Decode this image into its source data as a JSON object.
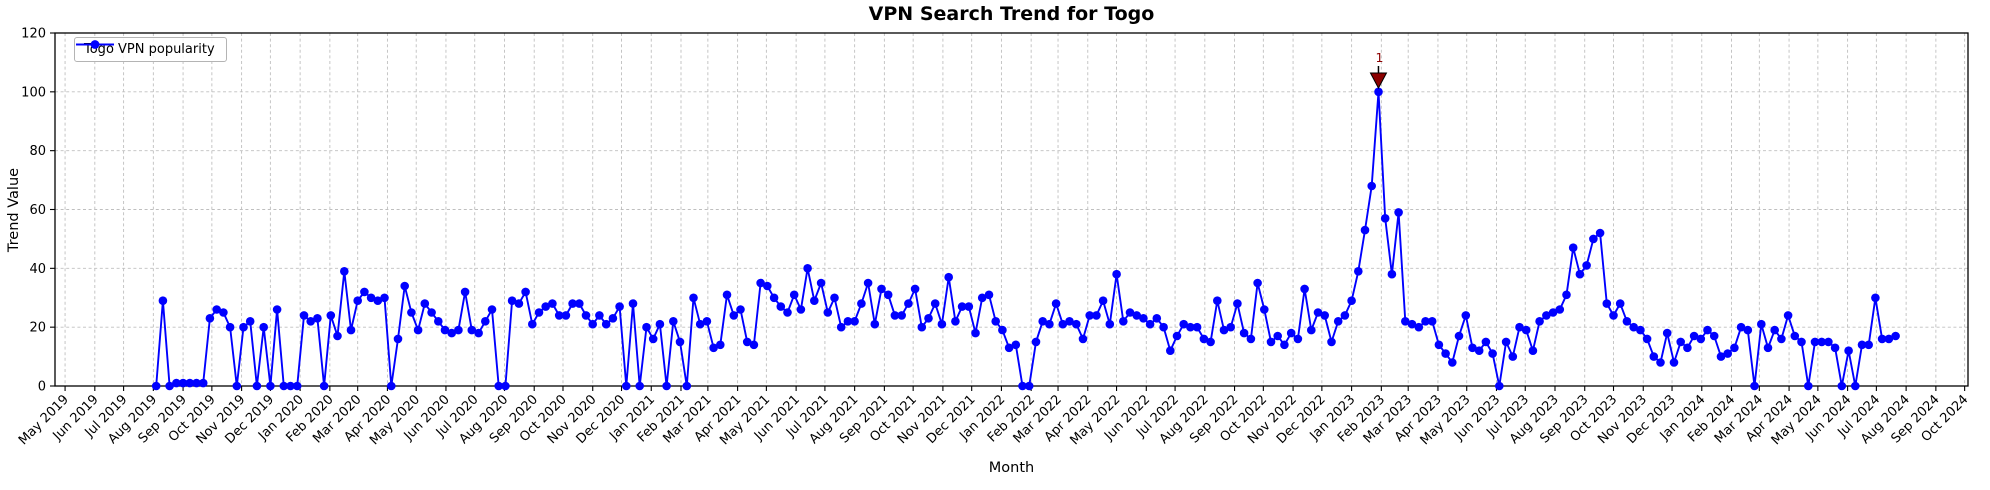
{
  "title": "VPN Search Trend for Togo",
  "x_axis_label": "Month",
  "y_axis_label": "Trend Value",
  "legend": {
    "label": "Togo VPN popularity"
  },
  "annotation": {
    "label": "1",
    "series_index": 182,
    "value": 100,
    "color": "#8b0000"
  },
  "colors": {
    "line": "#0000ff",
    "marker": "#0000ff",
    "grid": "#bfbfbf",
    "axis": "#000000",
    "annotation": "#8b0000",
    "background": "#ffffff"
  },
  "chart_data": {
    "type": "line",
    "title": "VPN Search Trend for Togo",
    "xlabel": "Month",
    "ylabel": "Trend Value",
    "ylim": [
      0,
      120
    ],
    "y_ticks": [
      0,
      20,
      40,
      60,
      80,
      100,
      120
    ],
    "grid": true,
    "legend_position": "upper left",
    "x_tick_labels": [
      "May 2019",
      "Jun 2019",
      "Jul 2019",
      "Aug 2019",
      "Sep 2019",
      "Oct 2019",
      "Nov 2019",
      "Dec 2019",
      "Jan 2020",
      "Feb 2020",
      "Mar 2020",
      "Apr 2020",
      "May 2020",
      "Jun 2020",
      "Jul 2020",
      "Aug 2020",
      "Sep 2020",
      "Oct 2020",
      "Nov 2020",
      "Dec 2020",
      "Jan 2021",
      "Feb 2021",
      "Mar 2021",
      "Apr 2021",
      "May 2021",
      "Jun 2021",
      "Jul 2021",
      "Aug 2021",
      "Sep 2021",
      "Oct 2021",
      "Nov 2021",
      "Dec 2021",
      "Jan 2022",
      "Feb 2022",
      "Mar 2022",
      "Apr 2022",
      "May 2022",
      "Jun 2022",
      "Jul 2022",
      "Aug 2022",
      "Sep 2022",
      "Oct 2022",
      "Nov 2022",
      "Dec 2022",
      "Jan 2023",
      "Feb 2023",
      "Mar 2023",
      "Apr 2023",
      "May 2023",
      "Jun 2023",
      "Jul 2023",
      "Aug 2023",
      "Sep 2023",
      "Oct 2023",
      "Nov 2023",
      "Dec 2023",
      "Jan 2024",
      "Feb 2024",
      "Mar 2024",
      "Apr 2024",
      "May 2024",
      "Jun 2024",
      "Jul 2024",
      "Aug 2024",
      "Sep 2024",
      "Oct 2024"
    ],
    "series": [
      {
        "name": "Togo VPN popularity",
        "start_date": "2019-08-04",
        "interval_days": 7,
        "values": [
          0,
          29,
          0,
          1,
          1,
          1,
          1,
          1,
          23,
          26,
          25,
          20,
          0,
          20,
          22,
          0,
          20,
          0,
          26,
          0,
          0,
          0,
          24,
          22,
          23,
          0,
          24,
          17,
          39,
          19,
          29,
          32,
          30,
          29,
          30,
          0,
          16,
          34,
          25,
          19,
          28,
          25,
          22,
          19,
          18,
          19,
          32,
          19,
          18,
          22,
          26,
          0,
          0,
          29,
          28,
          32,
          21,
          25,
          27,
          28,
          24,
          24,
          28,
          28,
          24,
          21,
          24,
          21,
          23,
          27,
          0,
          28,
          0,
          20,
          16,
          21,
          0,
          22,
          15,
          0,
          30,
          21,
          22,
          13,
          14,
          31,
          24,
          26,
          15,
          14,
          35,
          34,
          30,
          27,
          25,
          31,
          26,
          40,
          29,
          35,
          25,
          30,
          20,
          22,
          22,
          28,
          35,
          21,
          33,
          31,
          24,
          24,
          28,
          33,
          20,
          23,
          28,
          21,
          37,
          22,
          27,
          27,
          18,
          30,
          31,
          22,
          19,
          13,
          14,
          0,
          0,
          15,
          22,
          21,
          28,
          21,
          22,
          21,
          16,
          24,
          24,
          29,
          21,
          38,
          22,
          25,
          24,
          23,
          21,
          23,
          20,
          12,
          17,
          21,
          20,
          20,
          16,
          15,
          29,
          19,
          20,
          28,
          18,
          16,
          35,
          26,
          15,
          17,
          14,
          18,
          16,
          33,
          19,
          25,
          24,
          15,
          22,
          24,
          29,
          39,
          53,
          68,
          100,
          57,
          38,
          59,
          22,
          21,
          20,
          22,
          22,
          14,
          11,
          8,
          17,
          24,
          13,
          12,
          15,
          11,
          0,
          15,
          10,
          20,
          19,
          12,
          22,
          24,
          25,
          26,
          31,
          47,
          38,
          41,
          50,
          52,
          28,
          24,
          28,
          22,
          20,
          19,
          16,
          10,
          8,
          18,
          8,
          15,
          13,
          17,
          16,
          19,
          17,
          10,
          11,
          13,
          20,
          19,
          0,
          21,
          13,
          19,
          16,
          24,
          17,
          15,
          0,
          15,
          15,
          15,
          13,
          0,
          12,
          0,
          14,
          14,
          30,
          16,
          16,
          17
        ]
      }
    ]
  }
}
